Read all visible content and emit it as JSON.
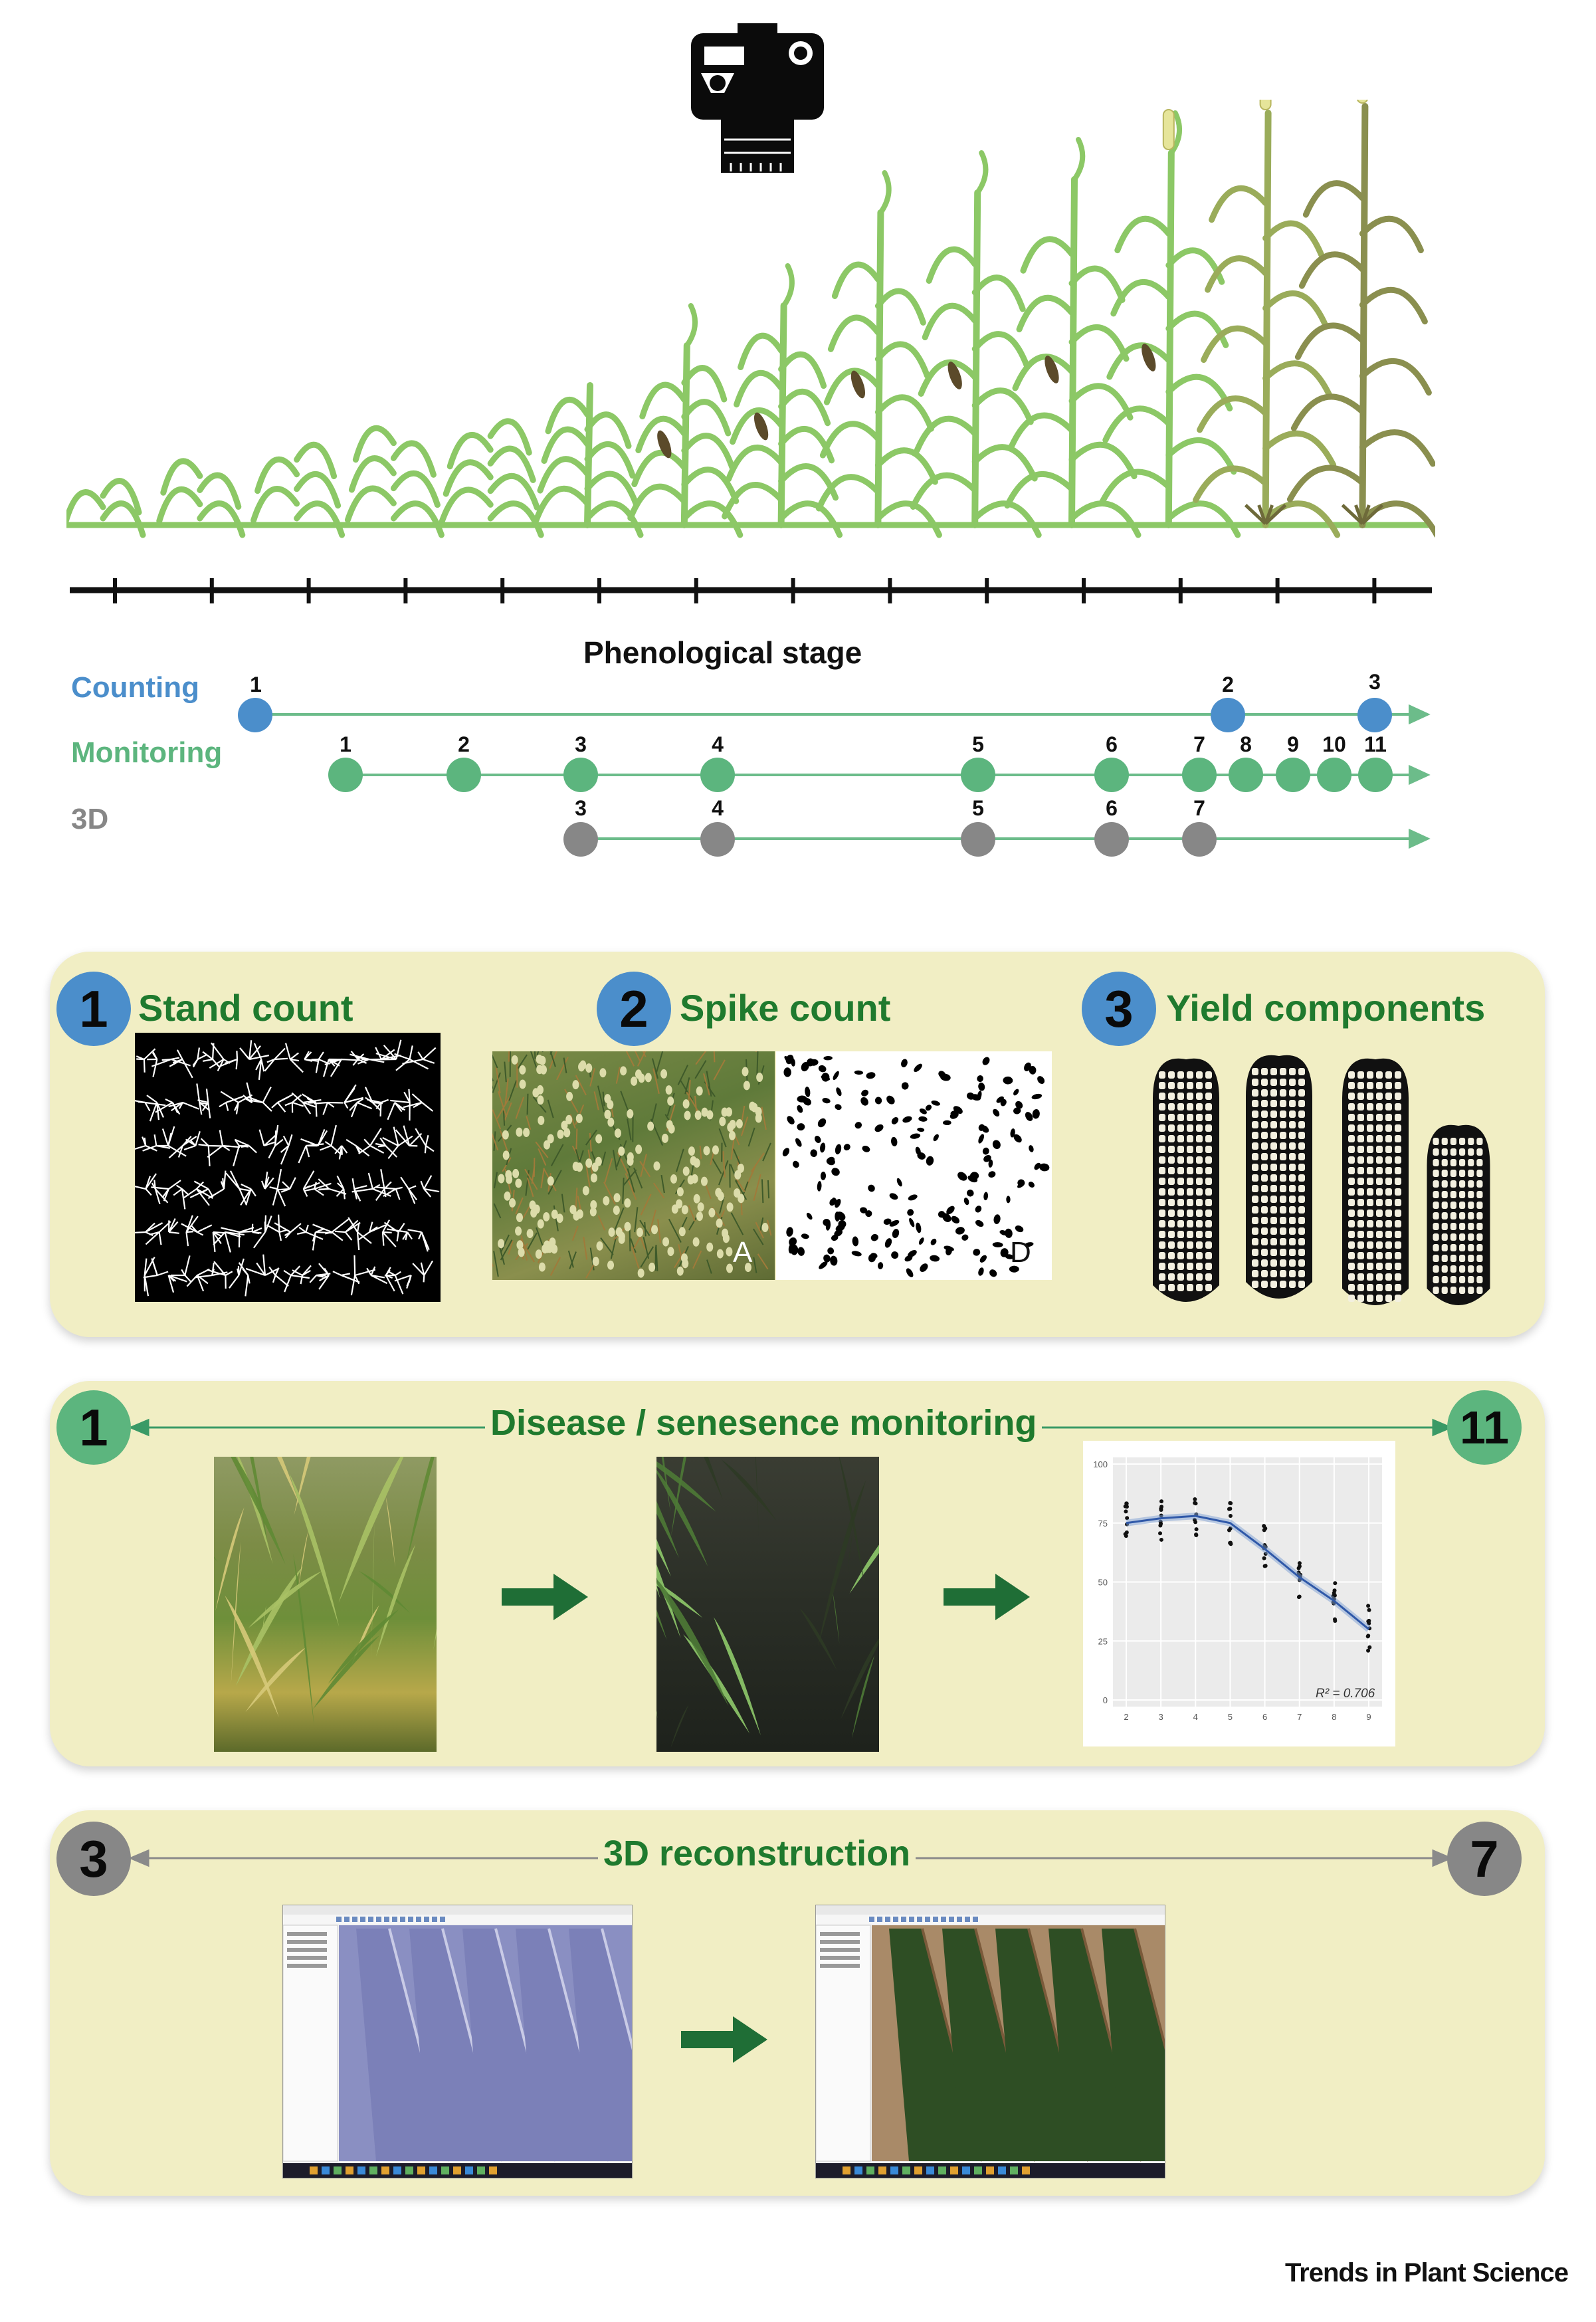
{
  "stage_axis_label": "Phenological stage",
  "timeline_rows": [
    {
      "name": "Counting",
      "color": "#4b8ecb"
    },
    {
      "name": "Monitoring",
      "color": "#5cb57e"
    },
    {
      "name": "3D",
      "color": "#878787"
    }
  ],
  "counting_points": [
    "1",
    "2",
    "3"
  ],
  "monitoring_points": [
    "1",
    "2",
    "3",
    "4",
    "5",
    "6",
    "7",
    "8",
    "9",
    "10",
    "11"
  ],
  "threed_points": [
    "3",
    "4",
    "5",
    "6",
    "7"
  ],
  "panel1": {
    "items": [
      {
        "number": "1",
        "title": "Stand count"
      },
      {
        "number": "2",
        "title": "Spike count"
      },
      {
        "number": "3",
        "title": "Yield components"
      }
    ],
    "spike_labels": {
      "left": "A",
      "right": "D"
    }
  },
  "panel2": {
    "start": "1",
    "end": "11",
    "title": "Disease / senesence monitoring",
    "plot": {
      "y_ticks": [
        "100",
        "75",
        "50",
        "25",
        "0"
      ],
      "x_ticks": [
        "2",
        "3",
        "4",
        "5",
        "6",
        "7",
        "8",
        "9"
      ],
      "r2_label": "R² = 0.706"
    }
  },
  "panel3": {
    "start": "3",
    "end": "7",
    "title": "3D reconstruction"
  },
  "footer": "Trends in Plant Science",
  "colors": {
    "panel_bg": "#f1eec4",
    "title_green": "#1f7a2e",
    "blue": "#4b8ecb",
    "green": "#5cb57e",
    "gray": "#878787",
    "arrow_green": "#1f6e36"
  }
}
